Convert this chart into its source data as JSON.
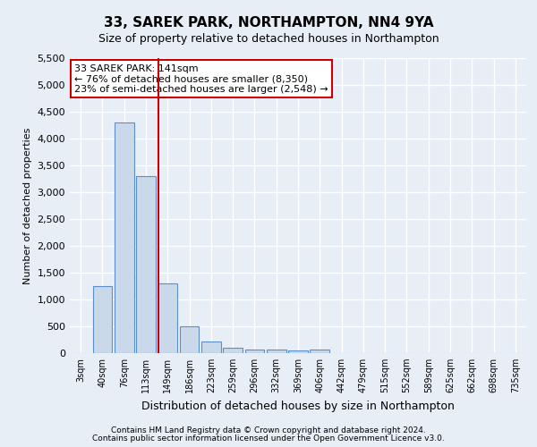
{
  "title": "33, SAREK PARK, NORTHAMPTON, NN4 9YA",
  "subtitle": "Size of property relative to detached houses in Northampton",
  "xlabel": "Distribution of detached houses by size in Northampton",
  "ylabel": "Number of detached properties",
  "footnote1": "Contains HM Land Registry data © Crown copyright and database right 2024.",
  "footnote2": "Contains public sector information licensed under the Open Government Licence v3.0.",
  "annotation_line1": "33 SAREK PARK: 141sqm",
  "annotation_line2": "← 76% of detached houses are smaller (8,350)",
  "annotation_line3": "23% of semi-detached houses are larger (2,548) →",
  "bar_color": "#c9d9ea",
  "bar_edge_color": "#5b8fc9",
  "vline_color": "#cc0000",
  "categories": [
    "3sqm",
    "40sqm",
    "76sqm",
    "113sqm",
    "149sqm",
    "186sqm",
    "223sqm",
    "259sqm",
    "296sqm",
    "332sqm",
    "369sqm",
    "406sqm",
    "442sqm",
    "479sqm",
    "515sqm",
    "552sqm",
    "589sqm",
    "625sqm",
    "662sqm",
    "698sqm",
    "735sqm"
  ],
  "values": [
    0,
    1250,
    4300,
    3300,
    1300,
    500,
    220,
    100,
    70,
    60,
    55,
    60,
    0,
    0,
    0,
    0,
    0,
    0,
    0,
    0,
    0
  ],
  "ylim": [
    0,
    5500
  ],
  "yticks": [
    0,
    500,
    1000,
    1500,
    2000,
    2500,
    3000,
    3500,
    4000,
    4500,
    5000,
    5500
  ],
  "vline_x_index": 3.58,
  "bg_color": "#e8eef6",
  "grid_color": "#ffffff",
  "annotation_box_facecolor": "#ffffff",
  "annotation_box_edgecolor": "#cc0000"
}
